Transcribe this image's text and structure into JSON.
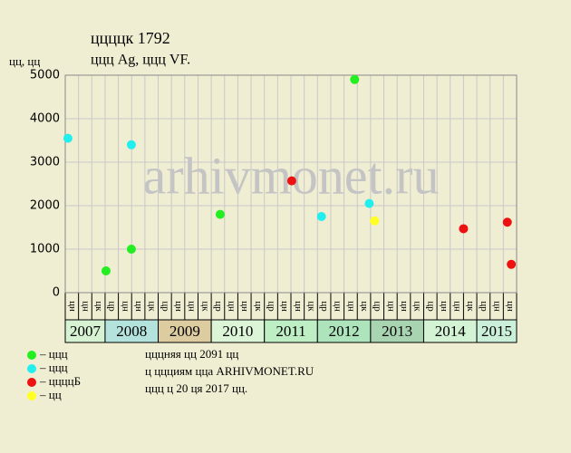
{
  "chart_data": {
    "type": "scatter",
    "title": "ццццк 1792",
    "subtitle": "ццц Ag, ццц VF.",
    "y_label": "цц, цц",
    "watermark": "arhivmonet.ru",
    "notes": [
      "цццняя цц 2091 цц",
      "ц ццциям цца ARHIVMONET.RU",
      "ццц ц 20 ця 2017 цц."
    ],
    "xlim": [
      0,
      34
    ],
    "ylim": [
      0,
      5000
    ],
    "yticks": [
      0,
      1000,
      2000,
      3000,
      4000,
      5000
    ],
    "grid": true,
    "years": [
      {
        "year": "2007",
        "color": "#d6f2d2",
        "quarters": [
          "цн",
          "цн",
          "цк"
        ]
      },
      {
        "year": "2008",
        "color": "#b4e2dc",
        "quarters": [
          "цр",
          "цн",
          "цн",
          "цк"
        ]
      },
      {
        "year": "2009",
        "color": "#dccca0",
        "quarters": [
          "цр",
          "цн",
          "цн",
          "цк"
        ]
      },
      {
        "year": "2010",
        "color": "#dcf5d6",
        "quarters": [
          "цр",
          "цн",
          "цн",
          "цк"
        ]
      },
      {
        "year": "2011",
        "color": "#bdeec4",
        "quarters": [
          "цр",
          "цн",
          "цн",
          "цк"
        ]
      },
      {
        "year": "2012",
        "color": "#ade4bc",
        "quarters": [
          "цр",
          "цн",
          "цн",
          "цк"
        ]
      },
      {
        "year": "2013",
        "color": "#a9d4b2",
        "quarters": [
          "цр",
          "цн",
          "цн",
          "цк"
        ]
      },
      {
        "year": "2014",
        "color": "#d4f2d4",
        "quarters": [
          "цр",
          "цн",
          "цн",
          "цк"
        ]
      },
      {
        "year": "2015",
        "color": "#cbf0da",
        "quarters": [
          "цр",
          "цн",
          "цн"
        ]
      }
    ],
    "series": [
      {
        "name": "– ццц",
        "color": "#22ee22",
        "x": [
          3.07,
          4.98,
          11.67,
          21.8
        ],
        "values": [
          500,
          1000,
          1800,
          4900
        ]
      },
      {
        "name": "– ццц",
        "color": "#22eeee",
        "x": [
          0.2,
          4.98,
          19.3,
          22.9
        ],
        "values": [
          3550,
          3400,
          1750,
          2050
        ]
      },
      {
        "name": "– ццццБ",
        "color": "#ee1111",
        "x": [
          17.06,
          30.0,
          33.3,
          33.6
        ],
        "values": [
          2570,
          1470,
          1620,
          650
        ]
      },
      {
        "name": "– цц",
        "color": "#ffff22",
        "x": [
          23.3
        ],
        "values": [
          1650
        ]
      }
    ]
  }
}
